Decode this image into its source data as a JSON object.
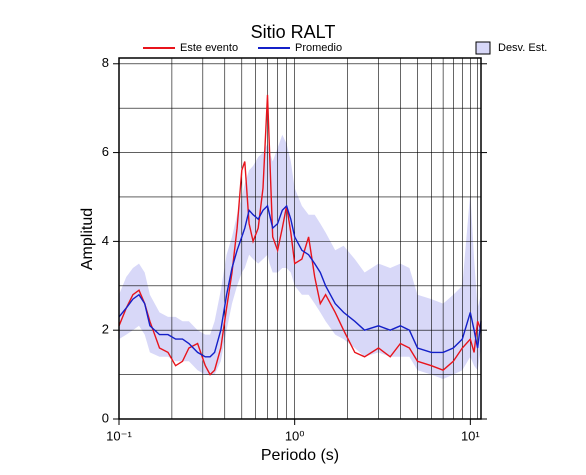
{
  "chart_data": {
    "type": "line",
    "title": "Sitio RALT",
    "xlabel": "Periodo (s)",
    "ylabel": "Amplitud",
    "log_x": true,
    "grid": true,
    "xlim": [
      0.1,
      11.5
    ],
    "ylim": [
      0,
      8.13
    ],
    "xticks": [
      {
        "value": 0.1,
        "label": "10⁻¹"
      },
      {
        "value": 1,
        "label": "10⁰"
      },
      {
        "value": 10,
        "label": "10¹"
      }
    ],
    "xgrid": [
      0.2,
      0.3,
      0.4,
      0.5,
      0.6,
      0.7,
      0.8,
      0.9,
      1,
      2,
      3,
      4,
      5,
      6,
      7,
      8,
      9,
      10,
      11
    ],
    "yticks": [
      0,
      2,
      4,
      6,
      8
    ],
    "ygrid": [
      1,
      2,
      3,
      4,
      5,
      6,
      7,
      8
    ],
    "x": [
      0.1,
      0.11,
      0.12,
      0.13,
      0.14,
      0.15,
      0.17,
      0.19,
      0.21,
      0.23,
      0.25,
      0.28,
      0.31,
      0.33,
      0.35,
      0.38,
      0.41,
      0.44,
      0.47,
      0.5,
      0.52,
      0.55,
      0.58,
      0.62,
      0.66,
      0.7,
      0.72,
      0.75,
      0.8,
      0.85,
      0.9,
      0.95,
      1.0,
      1.1,
      1.2,
      1.3,
      1.4,
      1.5,
      1.7,
      1.9,
      2.2,
      2.5,
      3,
      3.5,
      4,
      4.5,
      5,
      6,
      7,
      8,
      9,
      10,
      10.5,
      11,
      11.5
    ],
    "series": [
      {
        "name": "Este evento",
        "color": "#e8141c",
        "values": [
          2.1,
          2.5,
          2.8,
          2.9,
          2.6,
          2.2,
          1.6,
          1.5,
          1.2,
          1.3,
          1.6,
          1.7,
          1.2,
          1.0,
          1.1,
          1.6,
          2.5,
          3.3,
          4.3,
          5.6,
          5.8,
          4.4,
          4.0,
          4.3,
          5.2,
          7.3,
          6.0,
          4.1,
          3.8,
          4.3,
          4.8,
          4.2,
          3.5,
          3.6,
          4.1,
          3.2,
          2.6,
          2.8,
          2.4,
          2.0,
          1.5,
          1.4,
          1.6,
          1.4,
          1.7,
          1.6,
          1.3,
          1.2,
          1.1,
          1.3,
          1.6,
          1.8,
          1.5,
          2.2,
          2.0
        ]
      },
      {
        "name": "Promedio",
        "color": "#1420c8",
        "values": [
          2.3,
          2.5,
          2.7,
          2.8,
          2.6,
          2.1,
          1.9,
          1.9,
          1.8,
          1.8,
          1.7,
          1.5,
          1.4,
          1.4,
          1.5,
          2.0,
          2.8,
          3.4,
          3.8,
          4.1,
          4.3,
          4.7,
          4.6,
          4.5,
          4.7,
          4.8,
          4.6,
          4.3,
          4.4,
          4.7,
          4.8,
          4.5,
          4.1,
          3.8,
          3.7,
          3.5,
          3.3,
          3.0,
          2.6,
          2.4,
          2.2,
          2.0,
          2.1,
          2.0,
          2.1,
          2.0,
          1.6,
          1.5,
          1.5,
          1.6,
          1.8,
          2.4,
          2.0,
          1.6,
          2.2
        ]
      },
      {
        "name": "Desv. Est.",
        "color": "#d8d8f8",
        "band": true,
        "upper": [
          2.8,
          3.2,
          3.4,
          3.5,
          3.3,
          2.8,
          2.4,
          2.3,
          2.3,
          2.2,
          2.2,
          2.0,
          1.9,
          1.9,
          2.2,
          2.9,
          3.7,
          4.1,
          4.6,
          5.0,
          5.3,
          5.6,
          5.7,
          5.9,
          6.0,
          6.2,
          6.0,
          5.8,
          6.1,
          6.4,
          6.2,
          5.8,
          5.2,
          4.8,
          4.6,
          4.6,
          4.4,
          4.2,
          3.8,
          3.9,
          3.6,
          3.3,
          3.5,
          3.4,
          3.5,
          3.4,
          2.8,
          2.7,
          2.6,
          2.8,
          3.0,
          5.1,
          3.6,
          2.5,
          2.8
        ],
        "lower": [
          1.8,
          1.9,
          2.0,
          2.1,
          1.9,
          1.5,
          1.4,
          1.4,
          1.3,
          1.3,
          1.3,
          1.1,
          1.0,
          1.0,
          1.0,
          1.3,
          2.0,
          2.6,
          3.0,
          3.3,
          3.4,
          3.7,
          3.6,
          3.5,
          3.6,
          3.7,
          3.5,
          3.3,
          3.3,
          3.4,
          3.4,
          3.3,
          3.0,
          2.8,
          2.8,
          2.6,
          2.4,
          2.2,
          1.9,
          1.8,
          1.6,
          1.4,
          1.5,
          1.4,
          1.4,
          1.4,
          1.1,
          1.0,
          0.9,
          1.0,
          1.1,
          1.4,
          1.2,
          1.1,
          1.6
        ]
      }
    ]
  }
}
